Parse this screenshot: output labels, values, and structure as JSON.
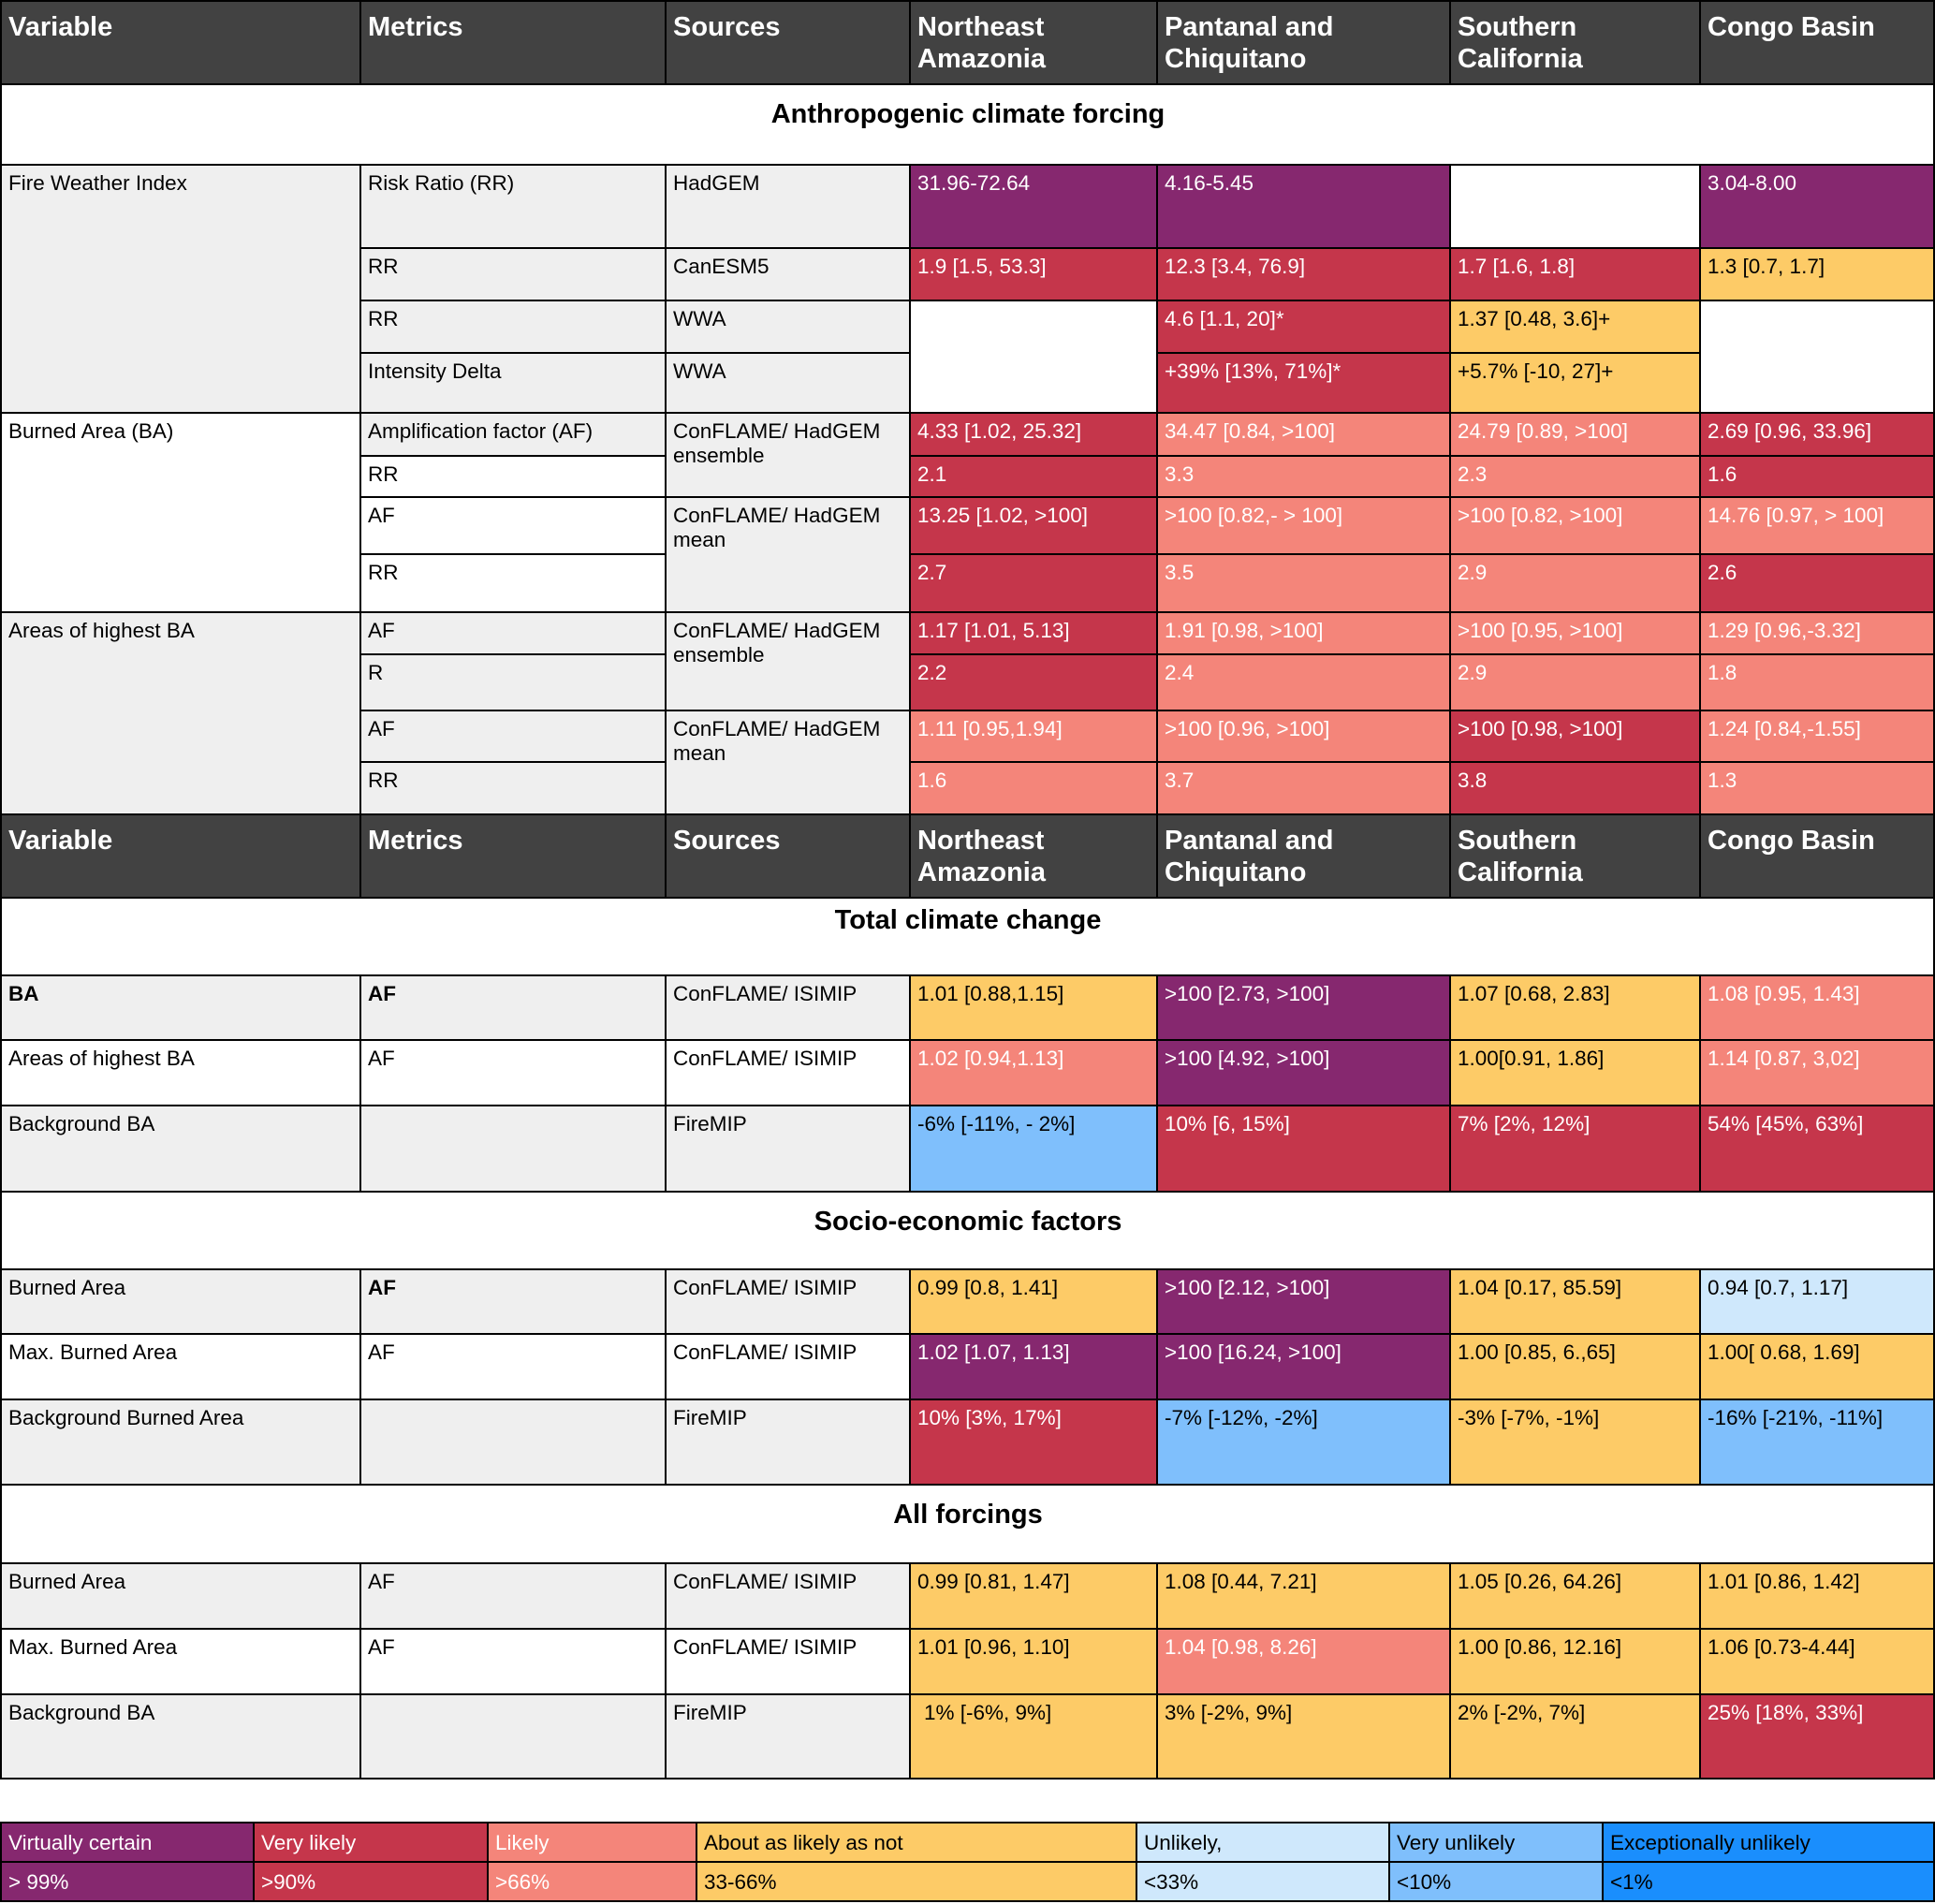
{
  "colors": {
    "virtually_certain": "#86286f",
    "very_likely": "#c5364b",
    "likely": "#f4857a",
    "about_as_likely_as_not": "#fdcb67",
    "unlikely": "#cfe8fc",
    "very_unlikely": "#7fbffc",
    "exceptionally_unlikely": "#1a8efd",
    "header_background": "#424242",
    "label_background": "#efefef"
  },
  "header": {
    "variable": "Variable",
    "metrics": "Metrics",
    "sources": "Sources",
    "ne_amazonia": "Northeast Amazonia",
    "pantanal": "Pantanal and Chiquitano",
    "s_california": "Southern California",
    "congo": "Congo Basin"
  },
  "sections": {
    "anthropogenic": "Anthropogenic climate forcing",
    "total": "Total climate change",
    "socio": "Socio-economic factors",
    "all": "All forcings"
  },
  "labels": {
    "fwi": "Fire Weather Index",
    "burned_area_ba": "Burned Area (BA)",
    "areas_highest_ba": "Areas of highest BA",
    "ba": "BA",
    "background_ba": "Background BA",
    "burned_area": "Burned Area",
    "max_burned_area": "Max. Burned Area",
    "background_burned_area": "Background Burned Area",
    "risk_ratio": "Risk Ratio (RR)",
    "rr": "RR",
    "r": "R",
    "intensity_delta": "Intensity Delta",
    "amplification_factor": "Amplification factor (AF)",
    "af": "AF",
    "hadgem": "HadGEM",
    "canesm5": "CanESM5",
    "wwa": "WWA",
    "conflame_hadgem_ensemble": "ConFLAME/ HadGEM ensemble",
    "conflame_hadgem_mean": "ConFLAME/ HadGEM mean",
    "conflame_isimip": "ConFLAME/ ISIMIP",
    "firemip": "FireMIP"
  },
  "values": {
    "fwi_hadgem": [
      "31.96-72.64",
      "4.16-5.45",
      "",
      "3.04-8.00"
    ],
    "fwi_canesm5": [
      "1.9 [1.5, 53.3]",
      "12.3 [3.4, 76.9]",
      "1.7 [1.6, 1.8]",
      "1.3 [0.7, 1.7]"
    ],
    "fwi_wwa_rr": [
      "",
      "4.6 [1.1, 20]*",
      "1.37 [0.48, 3.6]+",
      ""
    ],
    "fwi_wwa_intensity": [
      "",
      "+39% [13%, 71%]*",
      "+5.7% [-10, 27]+",
      ""
    ],
    "ba_ens_af": [
      "4.33 [1.02, 25.32]",
      "34.47 [0.84, >100]",
      "24.79 [0.89, >100]",
      "2.69 [0.96, 33.96]"
    ],
    "ba_ens_rr": [
      "2.1",
      "3.3",
      "2.3",
      "1.6"
    ],
    "ba_mean_af": [
      "13.25 [1.02, >100]",
      ">100 [0.82,- > 100]",
      ">100 [0.82, >100]",
      "14.76 [0.97, > 100]"
    ],
    "ba_mean_rr": [
      "2.7",
      "3.5",
      "2.9",
      "2.6"
    ],
    "hba_ens_af": [
      "1.17 [1.01, 5.13]",
      "1.91 [0.98, >100]",
      ">100 [0.95, >100]",
      "1.29 [0.96,-3.32]"
    ],
    "hba_ens_r": [
      "2.2",
      "2.4",
      "2.9",
      "1.8"
    ],
    "hba_mean_af": [
      "1.11 [0.95,1.94]",
      ">100 [0.96, >100]",
      ">100 [0.98, >100]",
      "1.24 [0.84,-1.55]"
    ],
    "hba_mean_rr": [
      "1.6",
      "3.7",
      "3.8",
      "1.3"
    ],
    "tcc_ba": [
      "1.01 [0.88,1.15]",
      ">100 [2.73, >100]",
      "1.07 [0.68, 2.83]",
      "1.08 [0.95, 1.43]"
    ],
    "tcc_hba": [
      "1.02 [0.94,1.13]",
      ">100 [4.92, >100]",
      "1.00[0.91, 1.86]",
      "1.14 [0.87, 3,02]"
    ],
    "tcc_bg": [
      "-6% [-11%, - 2%]",
      "10% [6, 15%]",
      "7% [2%, 12%]",
      "54% [45%, 63%]"
    ],
    "se_ba": [
      "0.99 [0.8, 1.41]",
      ">100 [2.12, >100]",
      "1.04 [0.17, 85.59]",
      "0.94 [0.7, 1.17]"
    ],
    "se_max": [
      "1.02 [1.07, 1.13]",
      ">100 [16.24, >100]",
      "1.00 [0.85, 6.,65]",
      "1.00[ 0.68, 1.69]"
    ],
    "se_bg": [
      "10% [3%, 17%]",
      "-7% [-12%, -2%]",
      "-3% [-7%, -1%]",
      "-16% [-21%, -11%]"
    ],
    "af_ba": [
      "0.99 [0.81, 1.47]",
      "1.08 [0.44, 7.21]",
      "1.05 [0.26, 64.26]",
      "1.01 [0.86, 1.42]"
    ],
    "af_max": [
      "1.01 [0.96, 1.10]",
      "1.04 [0.98, 8.26]",
      "1.00 [0.86, 12.16]",
      "1.06 [0.73-4.44]"
    ],
    "af_bg": [
      "1% [-6%, 9%]",
      "3% [-2%, 9%]",
      "2% [-2%, 7%]",
      "25% [18%, 33%]"
    ]
  },
  "legend": [
    {
      "label": "Virtually certain",
      "range": "> 99%"
    },
    {
      "label": "Very likely",
      "range": ">90%"
    },
    {
      "label": "Likely",
      "range": ">66%"
    },
    {
      "label": "About as likely as not",
      "range": "33-66%"
    },
    {
      "label": "Unlikely,",
      "range": "<33%"
    },
    {
      "label": "Very unlikely",
      "range": "<10%"
    },
    {
      "label": "Exceptionally unlikely",
      "range": "<1%"
    }
  ]
}
